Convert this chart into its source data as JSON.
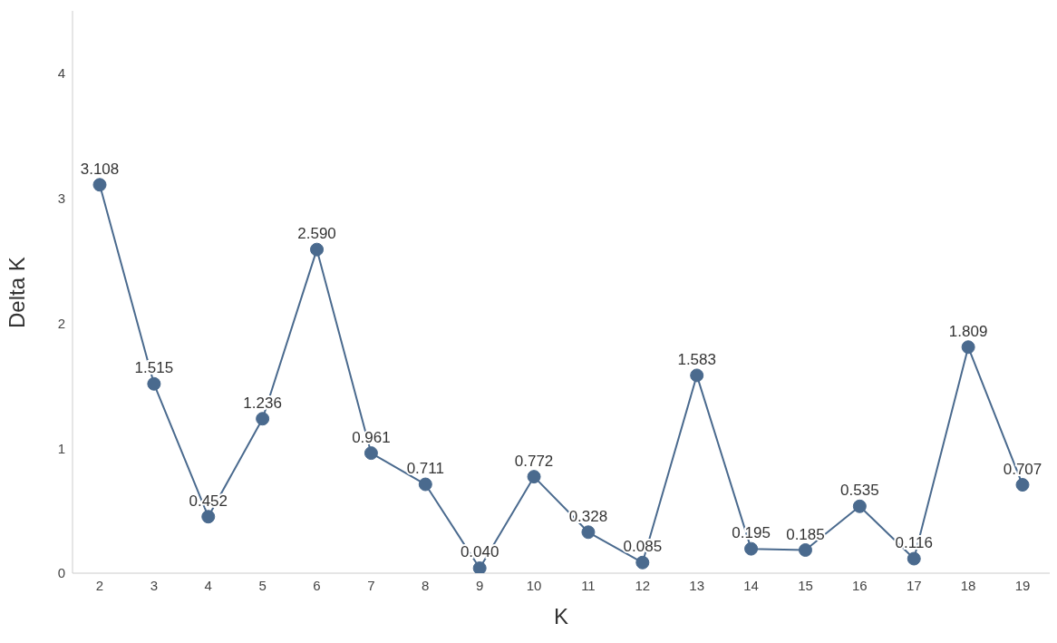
{
  "chart_data": {
    "type": "line",
    "xlabel": "K",
    "ylabel": "Delta K",
    "categories": [
      "2",
      "3",
      "4",
      "5",
      "6",
      "7",
      "8",
      "9",
      "10",
      "11",
      "12",
      "13",
      "14",
      "15",
      "16",
      "17",
      "18",
      "19"
    ],
    "values": [
      3.108,
      1.515,
      0.452,
      1.236,
      2.59,
      0.961,
      0.711,
      0.04,
      0.772,
      0.328,
      0.085,
      1.583,
      0.195,
      0.185,
      0.535,
      0.116,
      1.809,
      0.707
    ],
    "value_labels": [
      "3.108",
      "1.515",
      "0.452",
      "1.236",
      "2.590",
      "0.961",
      "0.711",
      "0.040",
      "0.772",
      "0.328",
      "0.085",
      "1.583",
      "0.195",
      "0.185",
      "0.535",
      "0.116",
      "1.809",
      "0.707"
    ],
    "color": "#4a6a8e",
    "ylim": [
      0,
      4.5
    ],
    "yticks": [
      0,
      1,
      2,
      3,
      4
    ],
    "grid": false,
    "legend": false,
    "marker": "circle",
    "line_style": "solid"
  }
}
